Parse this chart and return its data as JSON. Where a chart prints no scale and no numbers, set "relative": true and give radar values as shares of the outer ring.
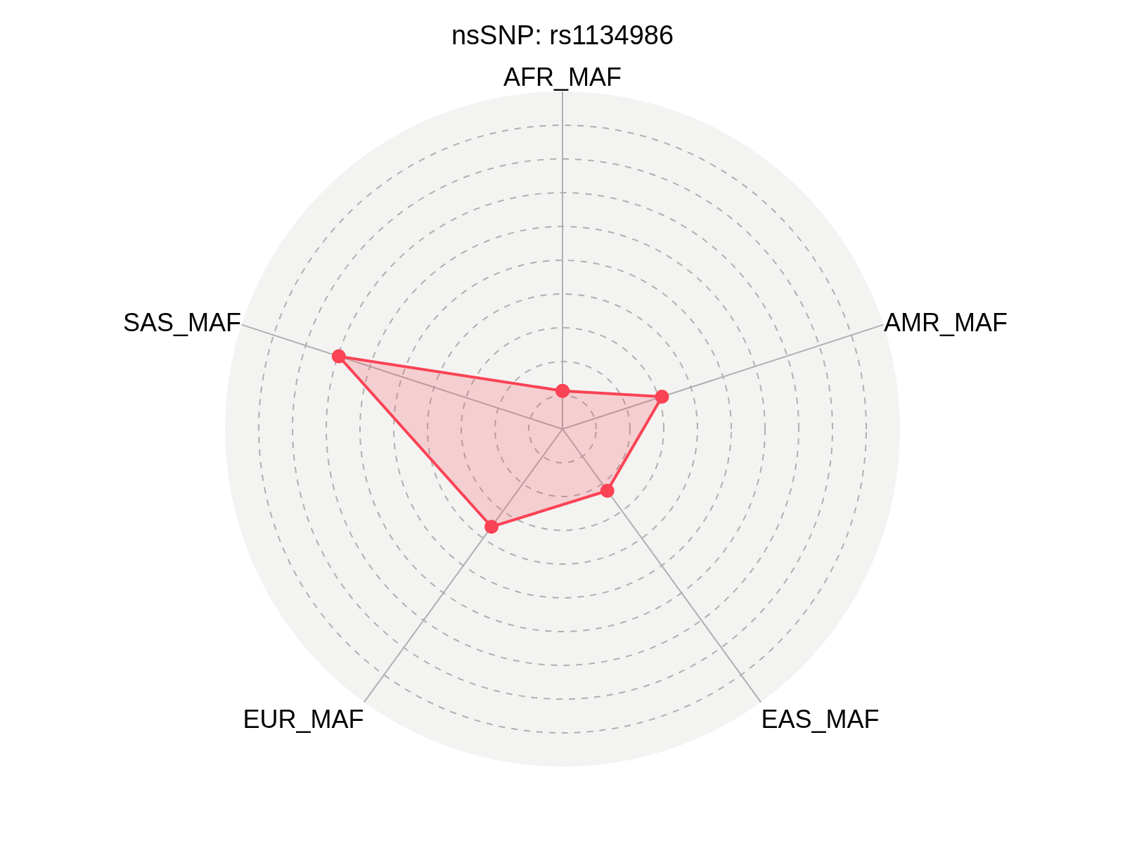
{
  "chart_data": {
    "type": "radar",
    "title": "nsSNP: rs1134986",
    "relative": true,
    "categories": [
      "AFR_MAF",
      "AMR_MAF",
      "EAS_MAF",
      "EUR_MAF",
      "SAS_MAF"
    ],
    "series": [
      {
        "color": "#fa4355",
        "values": [
          0.113,
          0.31,
          0.226,
          0.358,
          0.697
        ]
      }
    ],
    "grid": true,
    "marker": "circle",
    "line_style": "solid"
  }
}
